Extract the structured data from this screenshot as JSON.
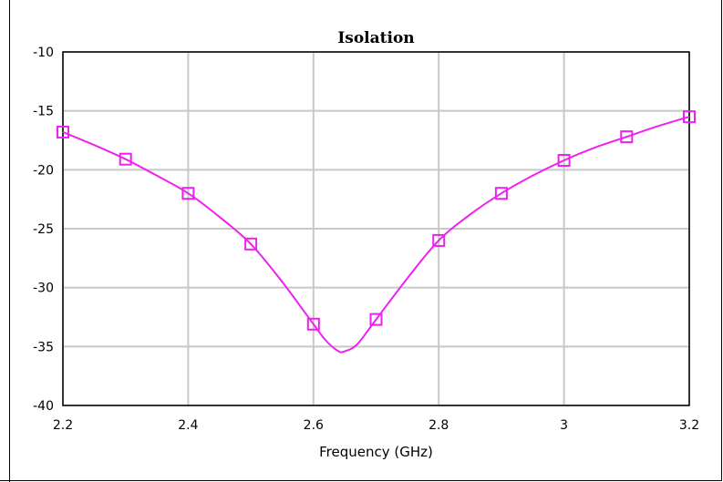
{
  "chart_data": {
    "type": "line",
    "title": "Isolation",
    "xlabel": "Frequency (GHz)",
    "ylabel": "",
    "xlim": [
      2.2,
      3.2
    ],
    "ylim": [
      -40,
      -10
    ],
    "xticks": [
      2.2,
      2.4,
      2.6,
      2.8,
      3,
      3.2
    ],
    "xtick_labels": [
      "2.2",
      "2.4",
      "2.6",
      "2.8",
      "3",
      "3.2"
    ],
    "yticks": [
      -10,
      -15,
      -20,
      -25,
      -30,
      -35,
      -40
    ],
    "ytick_labels": [
      "-10",
      "-15",
      "-20",
      "-25",
      "-30",
      "-35",
      "-40"
    ],
    "grid": true,
    "series": [
      {
        "color": "#ee22ee",
        "marker": "square",
        "curve": {
          "x": [
            2.2,
            2.25,
            2.3,
            2.35,
            2.4,
            2.45,
            2.5,
            2.55,
            2.6,
            2.62,
            2.64,
            2.65,
            2.67,
            2.7,
            2.75,
            2.8,
            2.85,
            2.9,
            2.95,
            3.0,
            3.05,
            3.1,
            3.15,
            3.2
          ],
          "y": [
            -16.8,
            -17.9,
            -19.1,
            -20.5,
            -22.0,
            -24.0,
            -26.3,
            -29.5,
            -33.1,
            -34.5,
            -35.4,
            -35.4,
            -34.8,
            -32.7,
            -29.2,
            -26.0,
            -23.8,
            -22.0,
            -20.5,
            -19.2,
            -18.1,
            -17.2,
            -16.3,
            -15.5
          ]
        },
        "markers": {
          "x": [
            2.2,
            2.3,
            2.4,
            2.5,
            2.6,
            2.7,
            2.8,
            2.9,
            3.0,
            3.1,
            3.2
          ],
          "y": [
            -16.8,
            -19.1,
            -22.0,
            -26.3,
            -33.1,
            -32.7,
            -26.0,
            -22.0,
            -19.2,
            -17.2,
            -15.5
          ]
        }
      }
    ]
  }
}
